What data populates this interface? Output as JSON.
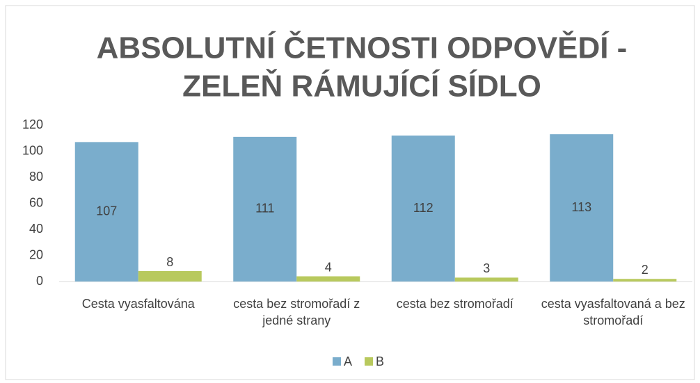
{
  "chart_data": {
    "type": "bar",
    "title": [
      "ABSOLUTNÍ ČETNOSTI ODPOVĚDÍ -",
      "ZELEŇ RÁMUJÍCÍ SÍDLO"
    ],
    "categories": [
      "Cesta vyasfaltována",
      "cesta bez stromořadí z jedné strany",
      "cesta bez stromořadí",
      "cesta vyasfaltovaná a bez stromořadí"
    ],
    "series": [
      {
        "name": "A",
        "color": "#7aadcc",
        "values": [
          107,
          111,
          112,
          113
        ]
      },
      {
        "name": "B",
        "color": "#b8c95d",
        "values": [
          8,
          4,
          3,
          2
        ]
      }
    ],
    "ylim": [
      0,
      120
    ],
    "yticks": [
      0,
      20,
      40,
      60,
      80,
      100,
      120
    ],
    "grid": false,
    "legend": "bottom"
  }
}
